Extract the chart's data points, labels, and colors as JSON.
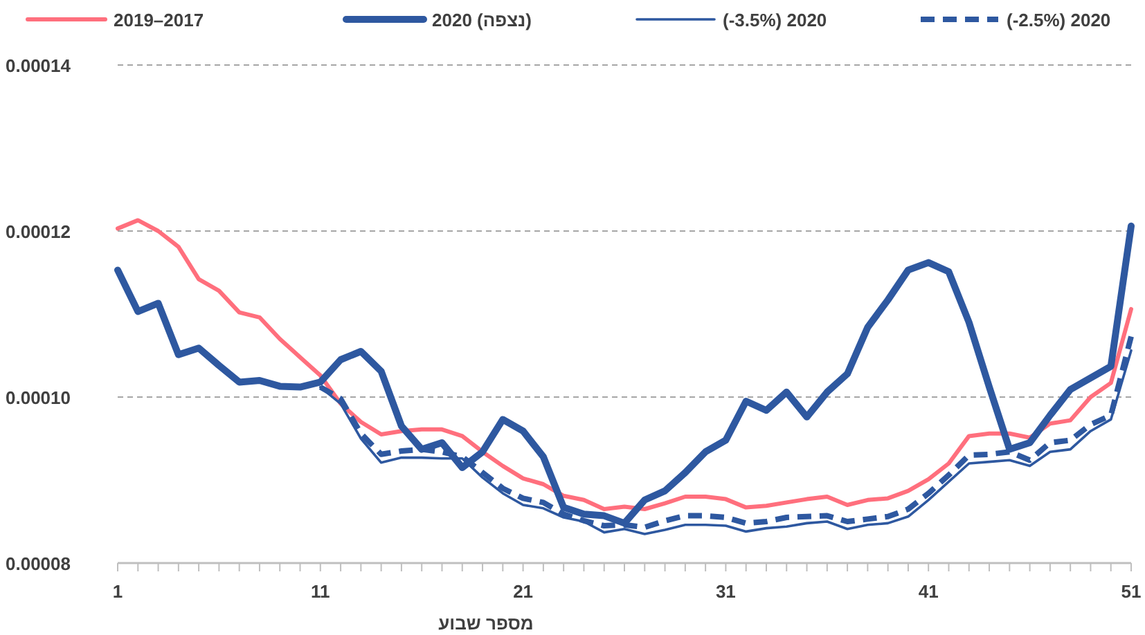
{
  "chart_data": {
    "type": "line",
    "xlabel": "מספר שבוע",
    "xlim": [
      1,
      51
    ],
    "xticks": [
      1,
      {
        "value": 2,
        "label": null
      },
      {
        "value": 3,
        "label": null
      },
      {
        "value": 4,
        "label": null
      },
      {
        "value": 5,
        "label": null
      },
      {
        "value": 6,
        "label": null
      },
      {
        "value": 7,
        "label": null
      },
      {
        "value": 8,
        "label": null
      },
      {
        "value": 9,
        "label": null
      },
      {
        "value": 10,
        "label": null
      },
      11,
      {
        "value": 12,
        "label": null
      },
      {
        "value": 13,
        "label": null
      },
      {
        "value": 14,
        "label": null
      },
      {
        "value": 15,
        "label": null
      },
      {
        "value": 16,
        "label": null
      },
      {
        "value": 17,
        "label": null
      },
      {
        "value": 18,
        "label": null
      },
      {
        "value": 19,
        "label": null
      },
      {
        "value": 20,
        "label": null
      },
      21,
      {
        "value": 22,
        "label": null
      },
      {
        "value": 23,
        "label": null
      },
      {
        "value": 24,
        "label": null
      },
      {
        "value": 25,
        "label": null
      },
      {
        "value": 26,
        "label": null
      },
      {
        "value": 27,
        "label": null
      },
      {
        "value": 28,
        "label": null
      },
      {
        "value": 29,
        "label": null
      },
      {
        "value": 30,
        "label": null
      },
      31,
      {
        "value": 32,
        "label": null
      },
      {
        "value": 33,
        "label": null
      },
      {
        "value": 34,
        "label": null
      },
      {
        "value": 35,
        "label": null
      },
      {
        "value": 36,
        "label": null
      },
      {
        "value": 37,
        "label": null
      },
      {
        "value": 38,
        "label": null
      },
      {
        "value": 39,
        "label": null
      },
      {
        "value": 40,
        "label": null
      },
      41,
      {
        "value": 42,
        "label": null
      },
      {
        "value": 43,
        "label": null
      },
      {
        "value": 44,
        "label": null
      },
      {
        "value": 45,
        "label": null
      },
      {
        "value": 46,
        "label": null
      },
      {
        "value": 47,
        "label": null
      },
      {
        "value": 48,
        "label": null
      },
      {
        "value": 49,
        "label": null
      },
      {
        "value": 50,
        "label": null
      },
      51
    ],
    "ylim": [
      8e-05,
      0.00014
    ],
    "yticks": [
      {
        "value": 8e-05,
        "label": "0.00008"
      },
      {
        "value": 0.0001,
        "label": "0.00010"
      },
      {
        "value": 0.00012,
        "label": "0.00012"
      },
      {
        "value": 0.00014,
        "label": "0.00014"
      }
    ],
    "grid": "y",
    "legend": "top",
    "marker": "none",
    "x": [
      1,
      2,
      3,
      4,
      5,
      6,
      7,
      8,
      9,
      10,
      11,
      12,
      13,
      14,
      15,
      16,
      17,
      18,
      19,
      20,
      21,
      22,
      23,
      24,
      25,
      26,
      27,
      28,
      29,
      30,
      31,
      32,
      33,
      34,
      35,
      36,
      37,
      38,
      39,
      40,
      41,
      42,
      43,
      44,
      45,
      46,
      47,
      48,
      49,
      50,
      51
    ],
    "series": [
      {
        "name": "2019–2017",
        "color": "#ff6f7d",
        "line_style": "solid",
        "values": [
          0.0001203,
          0.0001213,
          0.00012,
          0.0001181,
          0.0001142,
          0.0001128,
          0.0001102,
          0.0001096,
          0.000107,
          0.0001048,
          0.0001026,
          9.92e-05,
          9.7e-05,
          9.55e-05,
          9.59e-05,
          9.61e-05,
          9.61e-05,
          9.53e-05,
          9.34e-05,
          9.17e-05,
          9.02e-05,
          8.95e-05,
          8.81e-05,
          8.76e-05,
          8.65e-05,
          8.68e-05,
          8.65e-05,
          8.72e-05,
          8.8e-05,
          8.8e-05,
          8.77e-05,
          8.67e-05,
          8.69e-05,
          8.73e-05,
          8.77e-05,
          8.8e-05,
          8.7e-05,
          8.76e-05,
          8.78e-05,
          8.87e-05,
          9.01e-05,
          9.2e-05,
          9.53e-05,
          9.56e-05,
          9.56e-05,
          9.51e-05,
          9.68e-05,
          9.72e-05,
          0.0001,
          0.0001017,
          0.0001106
        ]
      },
      {
        "name": "2020 (נצפה)",
        "color": "#2e58a0",
        "line_style": "solid",
        "values": [
          0.0001153,
          0.0001103,
          0.0001113,
          0.0001051,
          0.0001059,
          0.0001038,
          0.0001018,
          0.000102,
          0.0001013,
          0.0001012,
          0.0001018,
          0.0001045,
          0.0001055,
          0.0001031,
          9.65e-05,
          9.37e-05,
          9.45e-05,
          9.15e-05,
          9.34e-05,
          9.73e-05,
          9.59e-05,
          9.28e-05,
          8.67e-05,
          8.59e-05,
          8.57e-05,
          8.48e-05,
          8.76e-05,
          8.87e-05,
          9.09e-05,
          9.34e-05,
          9.48e-05,
          9.95e-05,
          9.84e-05,
          0.0001006,
          9.76e-05,
          0.0001006,
          0.0001028,
          0.0001084,
          0.0001117,
          0.0001153,
          0.0001162,
          0.0001151,
          0.000109,
          0.0001012,
          9.37e-05,
          9.45e-05,
          9.78e-05,
          0.0001009,
          0.0001023,
          0.0001037,
          0.0001206
        ]
      },
      {
        "name": "(-3.5%) 2020",
        "color": "#2e58a0",
        "line_style": "solid",
        "values": [
          null,
          null,
          null,
          null,
          null,
          null,
          null,
          null,
          null,
          null,
          0.0001012,
          9.92e-05,
          9.5e-05,
          9.21e-05,
          9.27e-05,
          9.27e-05,
          9.26e-05,
          9.26e-05,
          9.03e-05,
          8.84e-05,
          8.7e-05,
          8.66e-05,
          8.55e-05,
          8.5e-05,
          8.37e-05,
          8.41e-05,
          8.35e-05,
          8.4e-05,
          8.46e-05,
          8.46e-05,
          8.45e-05,
          8.38e-05,
          8.42e-05,
          8.44e-05,
          8.48e-05,
          8.5e-05,
          8.41e-05,
          8.46e-05,
          8.48e-05,
          8.56e-05,
          8.76e-05,
          8.98e-05,
          9.2e-05,
          9.22e-05,
          9.24e-05,
          9.17e-05,
          9.34e-05,
          9.37e-05,
          9.59e-05,
          9.73e-05,
          0.0001056
        ]
      },
      {
        "name": "(-2.5%) 2020",
        "color": "#2e58a0",
        "line_style": "dashed",
        "values": [
          null,
          null,
          null,
          null,
          null,
          null,
          null,
          null,
          null,
          null,
          0.0001012,
          9.98e-05,
          9.56e-05,
          9.31e-05,
          9.35e-05,
          9.37e-05,
          9.34e-05,
          9.28e-05,
          9.09e-05,
          8.9e-05,
          8.78e-05,
          8.73e-05,
          8.59e-05,
          8.51e-05,
          8.45e-05,
          8.46e-05,
          8.43e-05,
          8.51e-05,
          8.57e-05,
          8.57e-05,
          8.55e-05,
          8.48e-05,
          8.5e-05,
          8.55e-05,
          8.56e-05,
          8.57e-05,
          8.5e-05,
          8.53e-05,
          8.56e-05,
          8.65e-05,
          8.84e-05,
          9.06e-05,
          9.3e-05,
          9.31e-05,
          9.34e-05,
          9.24e-05,
          9.45e-05,
          9.48e-05,
          9.67e-05,
          9.78e-05,
          0.0001073
        ]
      }
    ]
  }
}
